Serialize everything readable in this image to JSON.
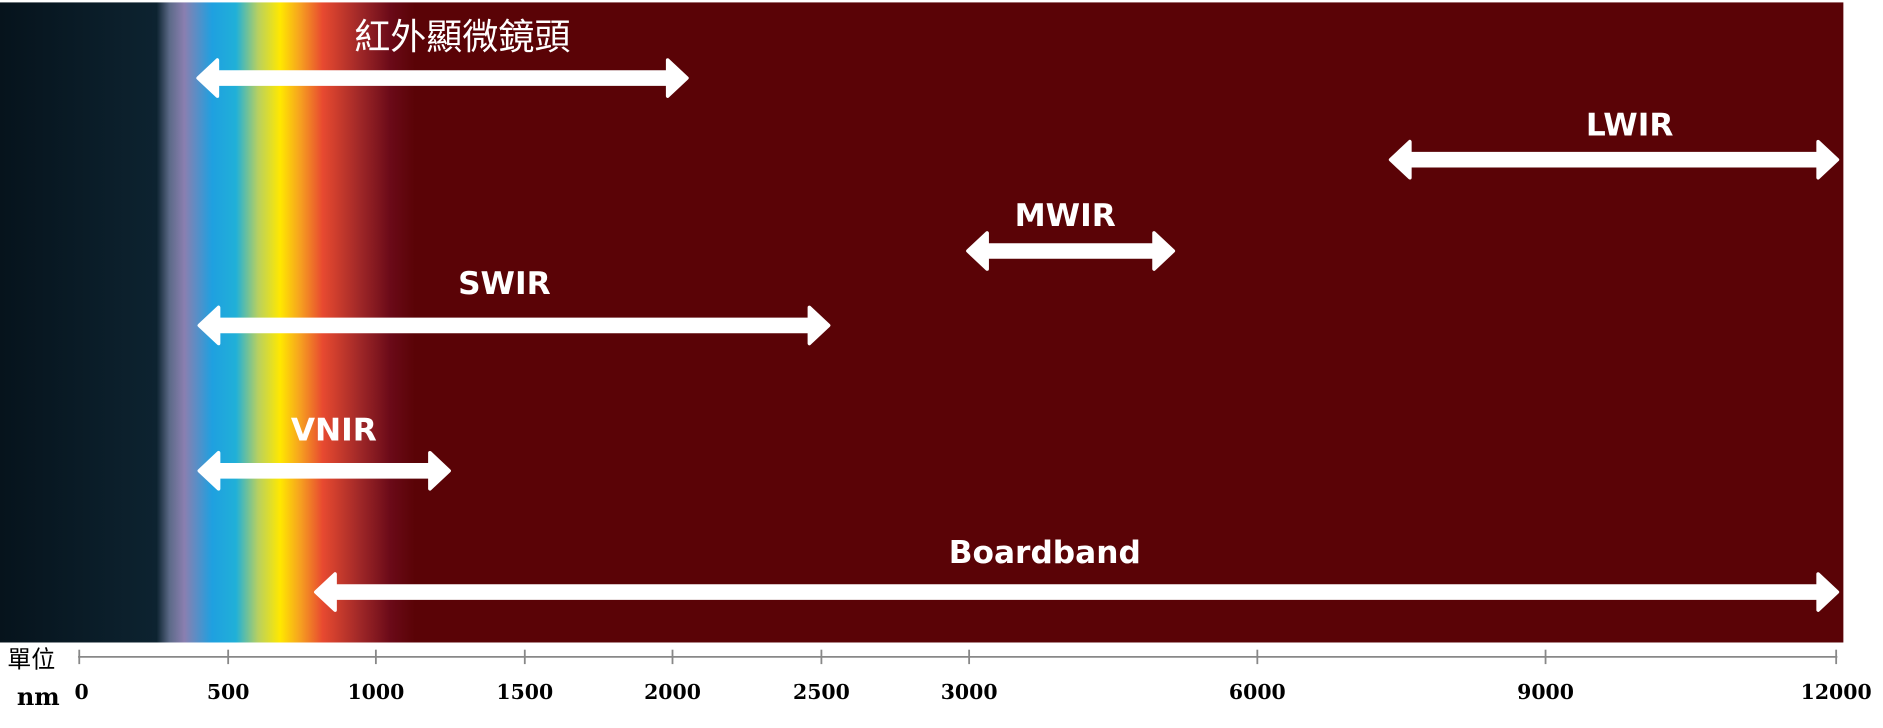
{
  "axis": {
    "unit_label": "單位",
    "unit": "nm",
    "ticks": [
      0,
      500,
      1000,
      1500,
      2000,
      2500,
      3000,
      6000,
      9000,
      12000
    ]
  },
  "bands": [
    {
      "label": "紅外顯微鏡頭"
    },
    {
      "label": "LWIR"
    },
    {
      "label": "MWIR"
    },
    {
      "label": "SWIR"
    },
    {
      "label": "VNIR"
    },
    {
      "label": "Boardband"
    }
  ]
}
